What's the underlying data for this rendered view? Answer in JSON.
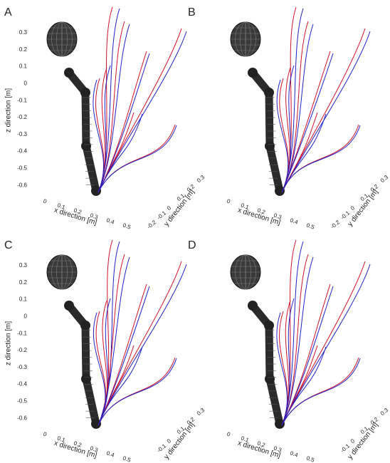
{
  "panels": [
    {
      "label": "A",
      "z_axis": {
        "title": "z direction [m]",
        "ticks": [
          "0.3",
          "0.2",
          "0.1",
          "0",
          "-0.1",
          "-0.2",
          "-0.3",
          "-0.4",
          "-0.5",
          "-0.6"
        ]
      },
      "x_axis": {
        "title": "x direction [m]",
        "ticks": [
          "0",
          "0.1",
          "0.2",
          "0.3",
          "0.4",
          "0.5"
        ]
      },
      "y_axis": {
        "title": "y direction [m]",
        "ticks": [
          "-0.2",
          "-0.1",
          "0",
          "0.1",
          "0.2",
          "0.3"
        ]
      }
    },
    {
      "label": "B",
      "x_axis": {
        "title": "x direction [m]",
        "ticks": [
          "0",
          "0.1",
          "0.2",
          "0.3",
          "0.4",
          "0.5"
        ]
      },
      "y_axis": {
        "title": "y direction [m]",
        "ticks": [
          "-0.2",
          "-0.1",
          "0",
          "0.1",
          "0.2",
          "0.3"
        ]
      }
    },
    {
      "label": "C",
      "z_axis": {
        "title": "z direction [m]",
        "ticks": [
          "0.3",
          "0.2",
          "0.1",
          "0",
          "-0.1",
          "-0.2",
          "-0.3",
          "-0.4",
          "-0.5",
          "-0.6"
        ]
      },
      "x_axis": {
        "title": "x direction [m]",
        "ticks": [
          "0",
          "0.1",
          "0.2",
          "0.3",
          "0.4",
          "0.5"
        ]
      },
      "y_axis": {
        "title": "y direction [m]",
        "ticks": [
          "-0.1",
          "0",
          "0.1",
          "0.2",
          "0.3"
        ]
      }
    },
    {
      "label": "D",
      "x_axis": {
        "title": "x direction [m]",
        "ticks": [
          "0",
          "0.1",
          "0.2",
          "0.3",
          "0.4",
          "0.5"
        ]
      },
      "y_axis": {
        "title": "y direction [m]",
        "ticks": [
          "-0.1",
          "0",
          "0.1",
          "0.2",
          "0.3"
        ]
      }
    }
  ]
}
